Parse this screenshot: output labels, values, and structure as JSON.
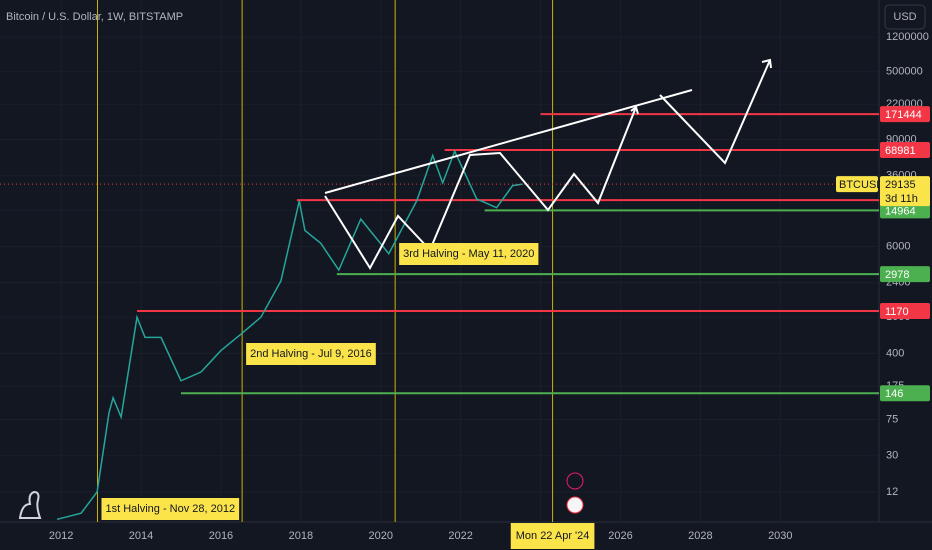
{
  "chart_data": {
    "type": "line",
    "title": "Bitcoin / U.S. Dollar, 1W, BITSTAMP",
    "currency": "USD",
    "log_scale": true,
    "color": "#26a69a",
    "x": [
      2011.9,
      2012.5,
      2012.9,
      2013.2,
      2013.3,
      2013.5,
      2013.9,
      2014.1,
      2014.5,
      2015.0,
      2015.5,
      2016.0,
      2016.5,
      2017.0,
      2017.5,
      2017.96,
      2018.1,
      2018.5,
      2018.95,
      2019.5,
      2020.2,
      2020.9,
      2021.3,
      2021.55,
      2021.85,
      2022.4,
      2022.9,
      2023.3,
      2023.55
    ],
    "values": [
      6,
      7,
      12,
      90,
      130,
      80,
      1000,
      600,
      600,
      200,
      250,
      430,
      650,
      1000,
      2500,
      19000,
      9000,
      6500,
      3300,
      12000,
      5000,
      19000,
      60000,
      30000,
      67000,
      20000,
      16000,
      28000,
      29135
    ],
    "xlim": [
      2010.47,
      2032.47
    ],
    "xticks": [
      2012,
      2014,
      2016,
      2018,
      2020,
      2022,
      2024,
      2026,
      2028,
      2030
    ],
    "ylim": [
      5.6,
      3080000
    ],
    "yticks": [
      1200000,
      500000,
      220000,
      90000,
      36000,
      15000,
      6000,
      2400,
      1000,
      400,
      175,
      75,
      30,
      12
    ],
    "levels": [
      {
        "value": 171444,
        "color": "#f23645",
        "start": 2024.0
      },
      {
        "value": 68981,
        "color": "#f23645",
        "start": 2021.6
      },
      {
        "value": 19389,
        "color": "#f23645",
        "start": 2017.9
      },
      {
        "value": 14964,
        "color": "#4caf50",
        "start": 2022.6
      },
      {
        "value": 2978,
        "color": "#4caf50",
        "start": 2018.9
      },
      {
        "value": 1170,
        "color": "#f23645",
        "start": 2013.9
      },
      {
        "value": 146,
        "color": "#4caf50",
        "start": 2015.0
      }
    ],
    "current": {
      "symbol": "BTCUSD",
      "value": 29135,
      "countdown": "3d 11h"
    },
    "halvings": [
      {
        "x": 2012.91,
        "label": "1st Halving - Nov 28, 2012"
      },
      {
        "x": 2016.53,
        "label": "2nd Halving - Jul 9, 2016"
      },
      {
        "x": 2020.36,
        "label": "3rd Halving - May 11, 2020"
      },
      {
        "x": 2024.3
      }
    ],
    "crosshair_label": "Mon 22 Apr '24"
  }
}
